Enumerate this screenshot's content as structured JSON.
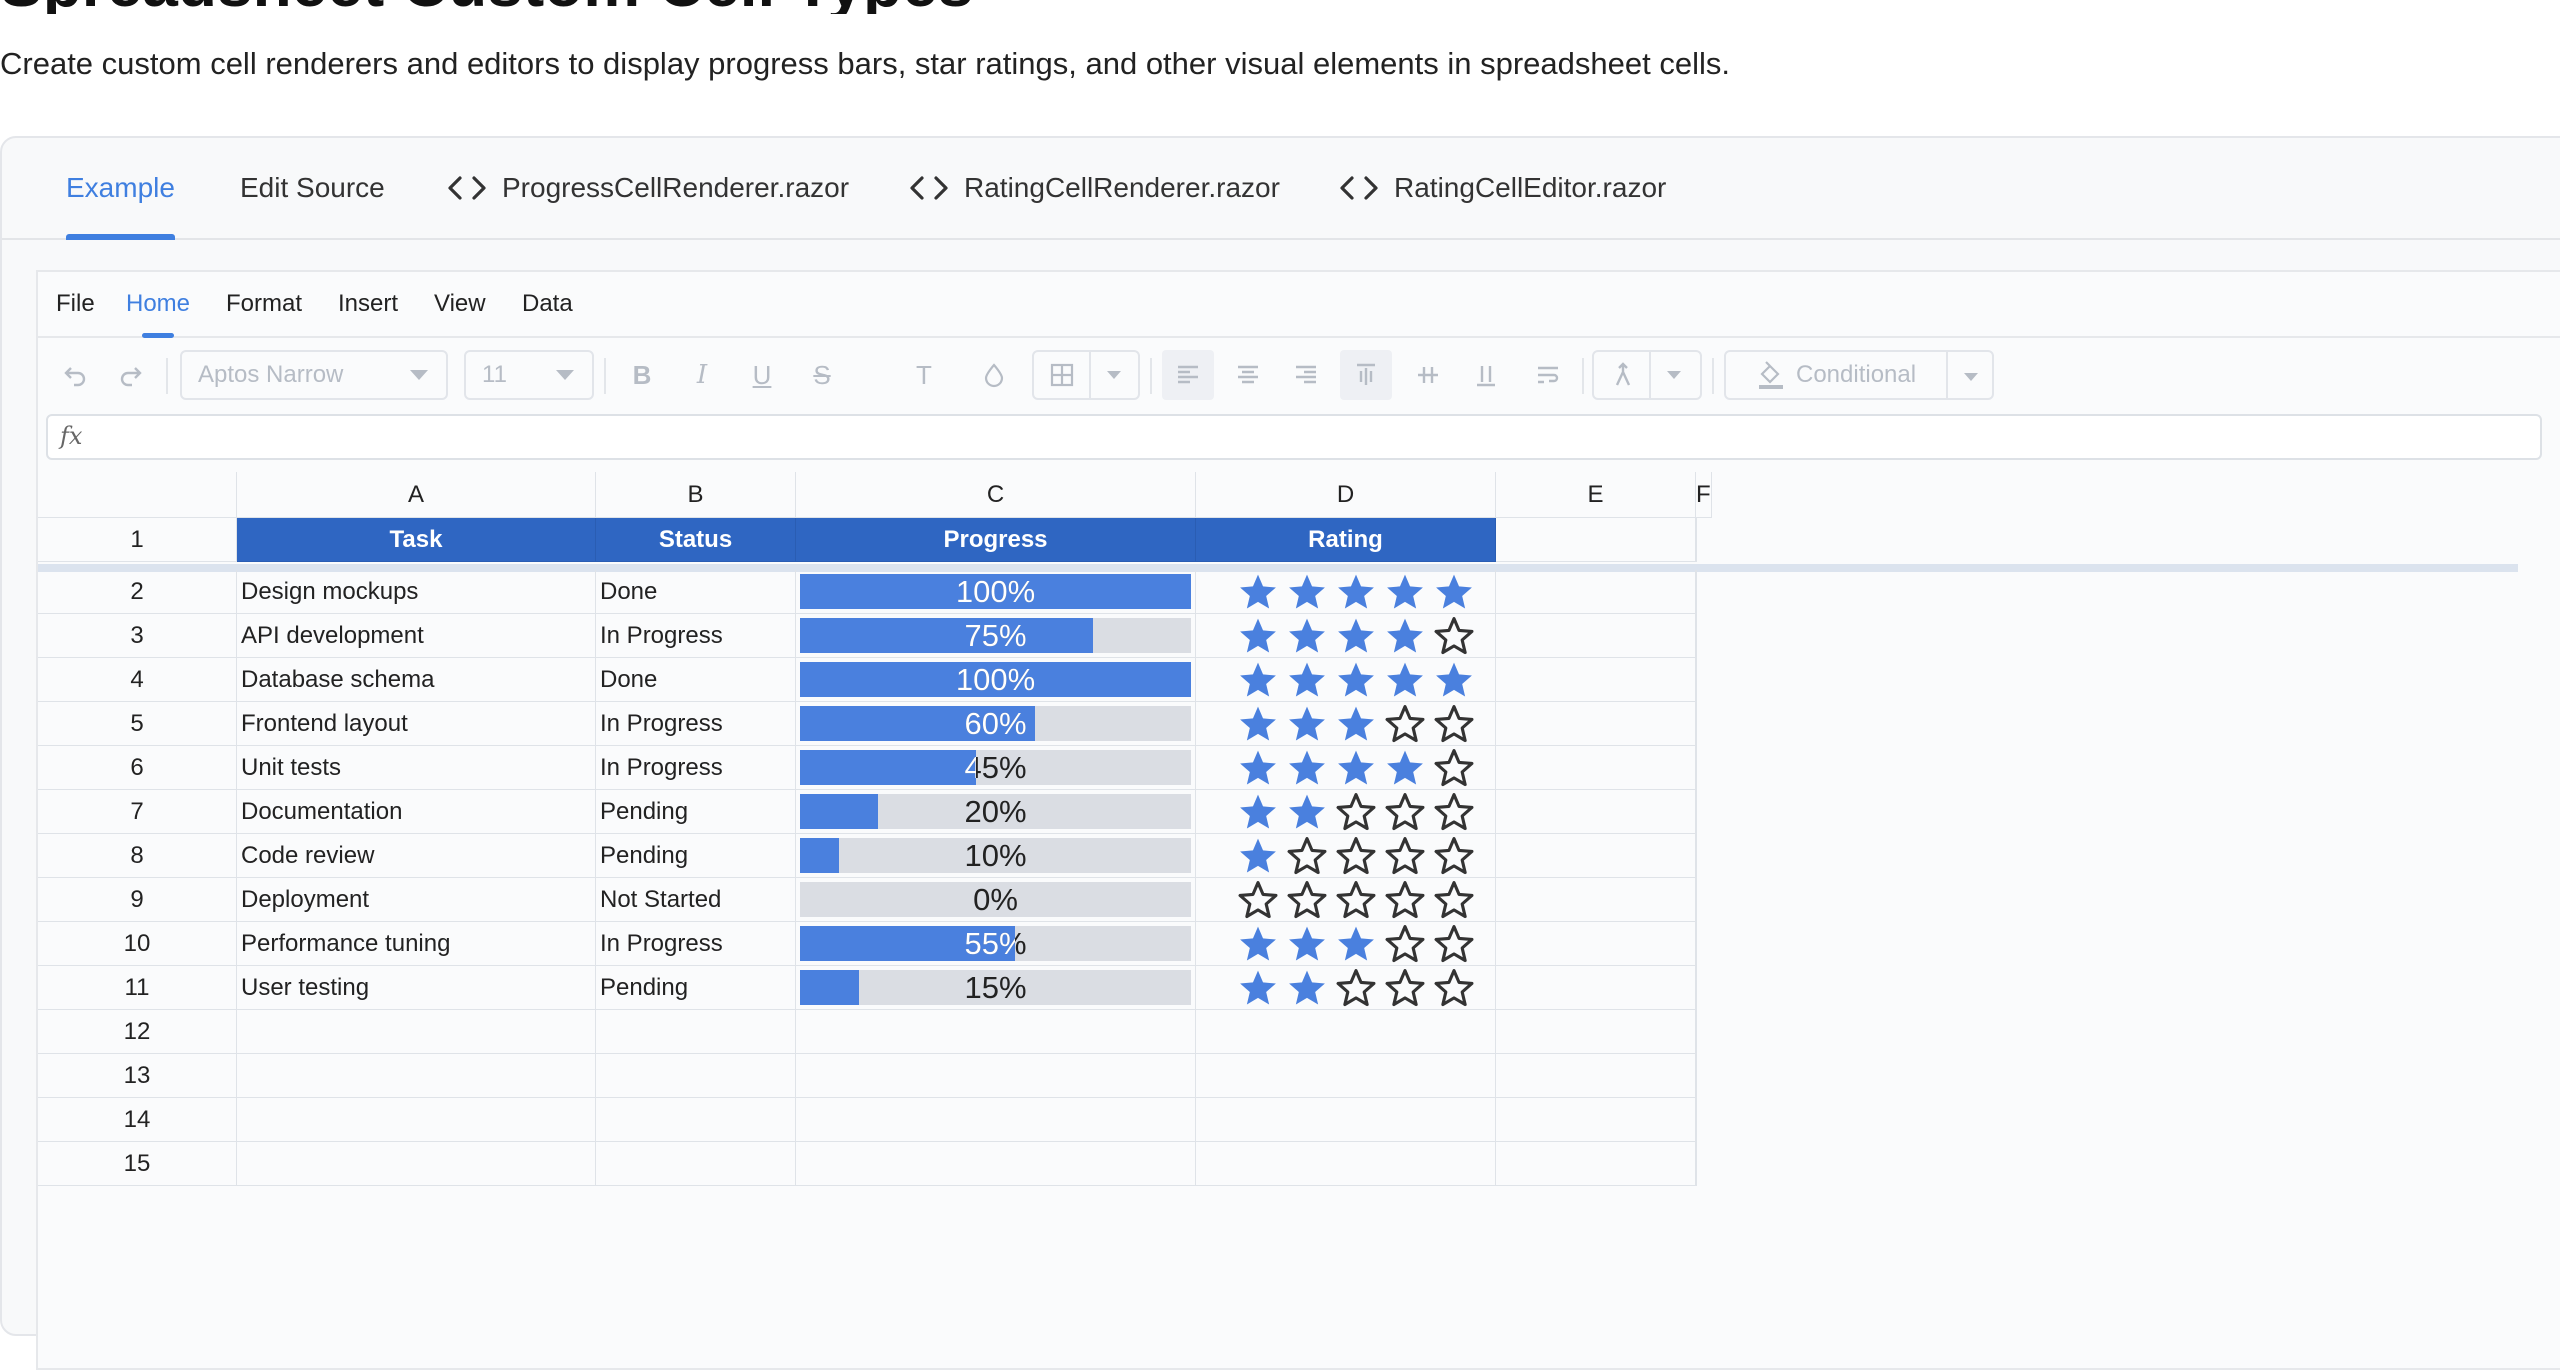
{
  "page": {
    "heading": "Spreadsheet Custom Cell Types",
    "description": "Create custom cell renderers and editors to display progress bars, star ratings, and other visual elements in spreadsheet cells."
  },
  "tabs": [
    {
      "label": "Example",
      "active": true
    },
    {
      "label": "Edit Source",
      "active": false
    },
    {
      "label": "ProgressCellRenderer.razor",
      "icon": "code-icon"
    },
    {
      "label": "RatingCellRenderer.razor",
      "icon": "code-icon"
    },
    {
      "label": "RatingCellEditor.razor",
      "icon": "code-icon"
    }
  ],
  "menu": [
    "File",
    "Home",
    "Format",
    "Insert",
    "View",
    "Data"
  ],
  "menu_active": "Home",
  "toolbar": {
    "font_name": "Aptos Narrow",
    "font_size": "11",
    "conditional_label": "Conditional"
  },
  "formula": {
    "fx_label": "fx",
    "value": ""
  },
  "columns": [
    "A",
    "B",
    "C",
    "D",
    "E",
    "F"
  ],
  "header_row": {
    "task": "Task",
    "status": "Status",
    "progress": "Progress",
    "rating": "Rating"
  },
  "rows": [
    {
      "num": "2",
      "task": "Design mockups",
      "status": "Done",
      "progress": 100,
      "progress_label": "100%",
      "rating": 5
    },
    {
      "num": "3",
      "task": "API development",
      "status": "In Progress",
      "progress": 75,
      "progress_label": "75%",
      "rating": 4
    },
    {
      "num": "4",
      "task": "Database schema",
      "status": "Done",
      "progress": 100,
      "progress_label": "100%",
      "rating": 5
    },
    {
      "num": "5",
      "task": "Frontend layout",
      "status": "In Progress",
      "progress": 60,
      "progress_label": "60%",
      "rating": 3
    },
    {
      "num": "6",
      "task": "Unit tests",
      "status": "In Progress",
      "progress": 45,
      "progress_label": "45%",
      "rating": 4
    },
    {
      "num": "7",
      "task": "Documentation",
      "status": "Pending",
      "progress": 20,
      "progress_label": "20%",
      "rating": 2
    },
    {
      "num": "8",
      "task": "Code review",
      "status": "Pending",
      "progress": 10,
      "progress_label": "10%",
      "rating": 1
    },
    {
      "num": "9",
      "task": "Deployment",
      "status": "Not Started",
      "progress": 0,
      "progress_label": "0%",
      "rating": 0
    },
    {
      "num": "10",
      "task": "Performance tuning",
      "status": "In Progress",
      "progress": 55,
      "progress_label": "55%",
      "rating": 3
    },
    {
      "num": "11",
      "task": "User testing",
      "status": "Pending",
      "progress": 15,
      "progress_label": "15%",
      "rating": 2
    }
  ],
  "empty_rows": [
    "12",
    "13",
    "14",
    "15"
  ],
  "first_row_num": "1",
  "rating_max": 5,
  "colors": {
    "accent": "#3f7fe0",
    "header_fill": "#2f66c2",
    "progress_fill": "#4a80de",
    "progress_track": "#dadde3",
    "star_filled": "#4a80de"
  }
}
